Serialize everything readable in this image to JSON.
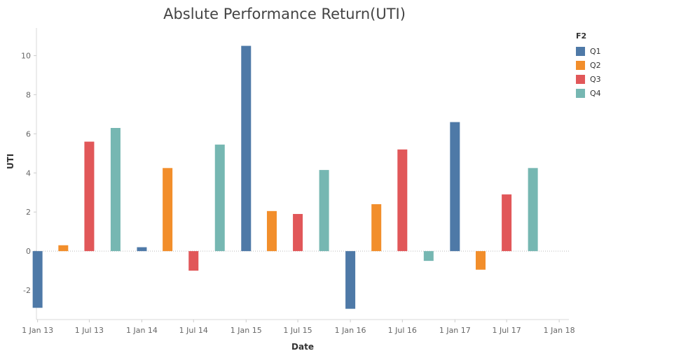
{
  "chart_data": {
    "type": "bar",
    "title": "Abslute Performance Return(UTI)",
    "xlabel": "Date",
    "ylabel": "UTI",
    "ylim": [
      -3.5,
      11.2
    ],
    "yticks": [
      -2,
      0,
      2,
      4,
      6,
      8,
      10
    ],
    "x_ticks": [
      "1 Jan 13",
      "1 Jul 13",
      "1 Jan 14",
      "1 Jul 14",
      "1 Jan 15",
      "1 Jul 15",
      "1 Jan 16",
      "1 Jul 16",
      "1 Jan 17",
      "1 Jul 17",
      "1 Jan 18"
    ],
    "legend_title": "F2",
    "legend_position": "top-right",
    "grid": false,
    "series": [
      {
        "name": "Q1",
        "color": "#4e79a7"
      },
      {
        "name": "Q2",
        "color": "#f28e2b"
      },
      {
        "name": "Q3",
        "color": "#e15759"
      },
      {
        "name": "Q4",
        "color": "#76b7b2"
      }
    ],
    "data": [
      {
        "x": "2013-01-01",
        "series": "Q1",
        "value": -2.9
      },
      {
        "x": "2013-04-01",
        "series": "Q2",
        "value": 0.3
      },
      {
        "x": "2013-07-01",
        "series": "Q3",
        "value": 5.6
      },
      {
        "x": "2013-10-01",
        "series": "Q4",
        "value": 6.3
      },
      {
        "x": "2014-01-01",
        "series": "Q1",
        "value": 0.2
      },
      {
        "x": "2014-04-01",
        "series": "Q2",
        "value": 4.25
      },
      {
        "x": "2014-07-01",
        "series": "Q3",
        "value": -1.0
      },
      {
        "x": "2014-10-01",
        "series": "Q4",
        "value": 5.45
      },
      {
        "x": "2015-01-01",
        "series": "Q1",
        "value": 10.5
      },
      {
        "x": "2015-04-01",
        "series": "Q2",
        "value": 2.05
      },
      {
        "x": "2015-07-01",
        "series": "Q3",
        "value": 1.9
      },
      {
        "x": "2015-10-01",
        "series": "Q4",
        "value": 4.15
      },
      {
        "x": "2016-01-01",
        "series": "Q1",
        "value": -2.95
      },
      {
        "x": "2016-04-01",
        "series": "Q2",
        "value": 2.4
      },
      {
        "x": "2016-07-01",
        "series": "Q3",
        "value": 5.2
      },
      {
        "x": "2016-10-01",
        "series": "Q4",
        "value": -0.5
      },
      {
        "x": "2017-01-01",
        "series": "Q1",
        "value": 6.6
      },
      {
        "x": "2017-04-01",
        "series": "Q2",
        "value": -0.95
      },
      {
        "x": "2017-07-01",
        "series": "Q3",
        "value": 2.9
      },
      {
        "x": "2017-10-01",
        "series": "Q4",
        "value": 4.25
      }
    ]
  }
}
